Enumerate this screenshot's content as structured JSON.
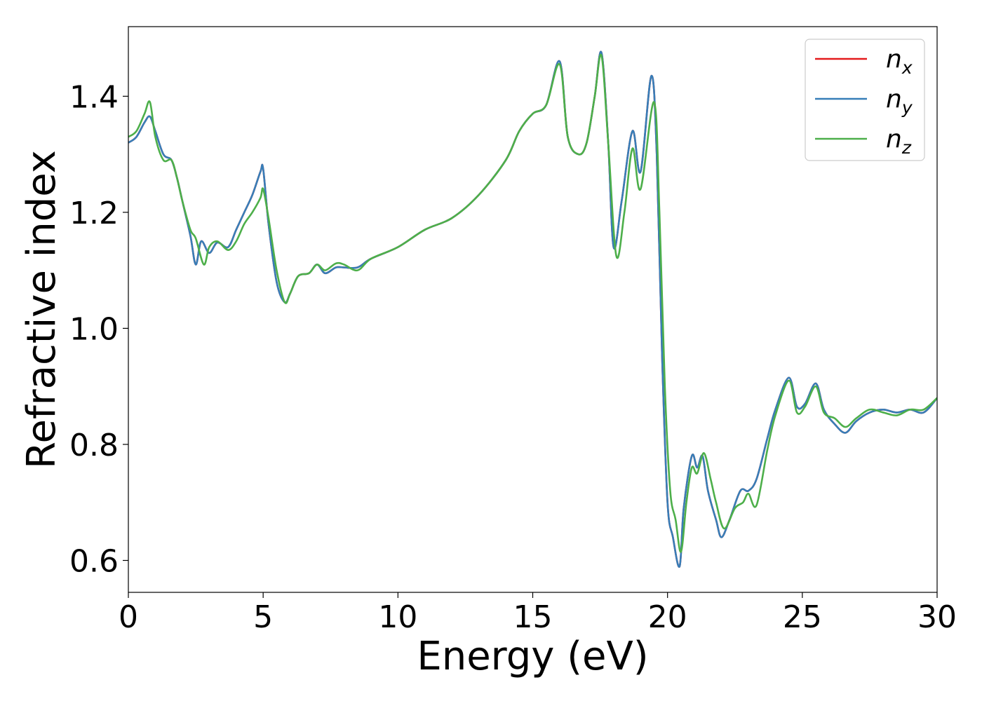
{
  "chart_data": {
    "type": "line",
    "title": "",
    "xlabel": "Energy (eV)",
    "ylabel": "Refractive index",
    "xlim": [
      0,
      30
    ],
    "ylim": [
      0.545,
      1.52
    ],
    "xticks": [
      0,
      5,
      10,
      15,
      20,
      25,
      30
    ],
    "xtick_labels": [
      "0",
      "5",
      "10",
      "15",
      "20",
      "25",
      "30"
    ],
    "yticks": [
      0.6,
      0.8,
      1.0,
      1.2,
      1.4
    ],
    "ytick_labels": [
      "0.6",
      "0.8",
      "1.0",
      "1.2",
      "1.4"
    ],
    "grid": false,
    "legend_position": "top-right",
    "series": [
      {
        "name": "n",
        "subscript": "x",
        "color": "#e41a1c",
        "x": [
          0,
          0.3,
          0.6,
          0.8,
          1.0,
          1.3,
          1.6,
          1.8,
          2.0,
          2.3,
          2.5,
          2.7,
          3.0,
          3.3,
          3.7,
          4.0,
          4.3,
          4.6,
          4.9,
          5.0,
          5.2,
          5.5,
          5.8,
          6.0,
          6.3,
          6.7,
          7.0,
          7.3,
          7.7,
          8.0,
          8.5,
          9.0,
          10.0,
          11.0,
          12.0,
          13.0,
          14.0,
          14.5,
          15.0,
          15.5,
          16.0,
          16.3,
          16.7,
          17.0,
          17.3,
          17.55,
          17.8,
          18.0,
          18.3,
          18.7,
          19.0,
          19.4,
          19.6,
          19.8,
          20.0,
          20.2,
          20.45,
          20.6,
          20.9,
          21.1,
          21.3,
          21.5,
          21.8,
          22.0,
          22.3,
          22.7,
          23.0,
          23.3,
          23.7,
          24.0,
          24.5,
          24.8,
          25.1,
          25.5,
          25.8,
          26.2,
          26.6,
          27.0,
          27.5,
          28.0,
          28.5,
          29.0,
          29.5,
          30.0
        ],
        "y": [
          1.32,
          1.33,
          1.355,
          1.365,
          1.34,
          1.3,
          1.29,
          1.26,
          1.22,
          1.16,
          1.11,
          1.15,
          1.13,
          1.148,
          1.14,
          1.17,
          1.2,
          1.23,
          1.27,
          1.275,
          1.18,
          1.08,
          1.045,
          1.06,
          1.09,
          1.095,
          1.11,
          1.095,
          1.105,
          1.105,
          1.105,
          1.12,
          1.14,
          1.17,
          1.19,
          1.23,
          1.29,
          1.34,
          1.37,
          1.385,
          1.46,
          1.33,
          1.3,
          1.32,
          1.4,
          1.475,
          1.32,
          1.14,
          1.22,
          1.34,
          1.27,
          1.435,
          1.3,
          0.95,
          0.7,
          0.64,
          0.59,
          0.69,
          0.78,
          0.76,
          0.78,
          0.72,
          0.67,
          0.64,
          0.67,
          0.72,
          0.72,
          0.74,
          0.81,
          0.86,
          0.915,
          0.865,
          0.87,
          0.905,
          0.86,
          0.835,
          0.82,
          0.84,
          0.855,
          0.86,
          0.855,
          0.86,
          0.855,
          0.88
        ]
      },
      {
        "name": "n",
        "subscript": "y",
        "color": "#377eb8",
        "x": [
          0,
          0.3,
          0.6,
          0.8,
          1.0,
          1.3,
          1.6,
          1.8,
          2.0,
          2.3,
          2.5,
          2.7,
          3.0,
          3.3,
          3.7,
          4.0,
          4.3,
          4.6,
          4.9,
          5.0,
          5.2,
          5.5,
          5.8,
          6.0,
          6.3,
          6.7,
          7.0,
          7.3,
          7.7,
          8.0,
          8.5,
          9.0,
          10.0,
          11.0,
          12.0,
          13.0,
          14.0,
          14.5,
          15.0,
          15.5,
          16.0,
          16.3,
          16.7,
          17.0,
          17.3,
          17.55,
          17.8,
          18.0,
          18.3,
          18.7,
          19.0,
          19.4,
          19.6,
          19.8,
          20.0,
          20.2,
          20.45,
          20.6,
          20.9,
          21.1,
          21.3,
          21.5,
          21.8,
          22.0,
          22.3,
          22.7,
          23.0,
          23.3,
          23.7,
          24.0,
          24.5,
          24.8,
          25.1,
          25.5,
          25.8,
          26.2,
          26.6,
          27.0,
          27.5,
          28.0,
          28.5,
          29.0,
          29.5,
          30.0
        ],
        "y": [
          1.32,
          1.33,
          1.355,
          1.365,
          1.34,
          1.3,
          1.29,
          1.26,
          1.22,
          1.16,
          1.11,
          1.15,
          1.13,
          1.148,
          1.14,
          1.17,
          1.2,
          1.23,
          1.27,
          1.275,
          1.18,
          1.08,
          1.045,
          1.06,
          1.09,
          1.095,
          1.11,
          1.095,
          1.105,
          1.105,
          1.105,
          1.12,
          1.14,
          1.17,
          1.19,
          1.23,
          1.29,
          1.34,
          1.37,
          1.385,
          1.46,
          1.33,
          1.3,
          1.32,
          1.4,
          1.475,
          1.32,
          1.14,
          1.22,
          1.34,
          1.27,
          1.435,
          1.3,
          0.95,
          0.7,
          0.64,
          0.59,
          0.69,
          0.78,
          0.76,
          0.78,
          0.72,
          0.67,
          0.64,
          0.67,
          0.72,
          0.72,
          0.74,
          0.81,
          0.86,
          0.915,
          0.865,
          0.87,
          0.905,
          0.86,
          0.835,
          0.82,
          0.84,
          0.855,
          0.86,
          0.855,
          0.86,
          0.855,
          0.88
        ]
      },
      {
        "name": "n",
        "subscript": "z",
        "color": "#4daf4a",
        "x": [
          0,
          0.3,
          0.6,
          0.8,
          1.0,
          1.3,
          1.6,
          1.8,
          2.0,
          2.3,
          2.5,
          2.8,
          3.0,
          3.3,
          3.7,
          4.0,
          4.3,
          4.6,
          4.9,
          5.0,
          5.2,
          5.5,
          5.8,
          6.0,
          6.3,
          6.7,
          7.0,
          7.3,
          7.7,
          8.0,
          8.5,
          9.0,
          10.0,
          11.0,
          12.0,
          13.0,
          14.0,
          14.5,
          15.0,
          15.5,
          16.0,
          16.3,
          16.7,
          17.0,
          17.3,
          17.55,
          17.8,
          18.1,
          18.4,
          18.7,
          19.0,
          19.5,
          19.7,
          19.9,
          20.1,
          20.3,
          20.5,
          20.7,
          20.9,
          21.1,
          21.35,
          21.6,
          21.8,
          22.1,
          22.5,
          22.8,
          23.0,
          23.3,
          23.7,
          24.0,
          24.5,
          24.8,
          25.1,
          25.5,
          25.8,
          26.2,
          26.6,
          27.0,
          27.5,
          28.0,
          28.5,
          29.0,
          29.5,
          30.0
        ],
        "y": [
          1.33,
          1.34,
          1.37,
          1.39,
          1.33,
          1.29,
          1.29,
          1.26,
          1.22,
          1.17,
          1.155,
          1.11,
          1.14,
          1.15,
          1.135,
          1.15,
          1.18,
          1.2,
          1.225,
          1.24,
          1.19,
          1.1,
          1.045,
          1.06,
          1.09,
          1.095,
          1.11,
          1.1,
          1.112,
          1.11,
          1.1,
          1.12,
          1.14,
          1.17,
          1.19,
          1.23,
          1.29,
          1.34,
          1.37,
          1.385,
          1.455,
          1.33,
          1.3,
          1.32,
          1.4,
          1.47,
          1.32,
          1.125,
          1.2,
          1.31,
          1.24,
          1.39,
          1.2,
          0.9,
          0.72,
          0.67,
          0.615,
          0.7,
          0.76,
          0.75,
          0.785,
          0.74,
          0.7,
          0.655,
          0.69,
          0.7,
          0.715,
          0.695,
          0.79,
          0.85,
          0.91,
          0.855,
          0.865,
          0.9,
          0.855,
          0.845,
          0.83,
          0.845,
          0.86,
          0.855,
          0.85,
          0.86,
          0.86,
          0.88
        ]
      }
    ]
  }
}
